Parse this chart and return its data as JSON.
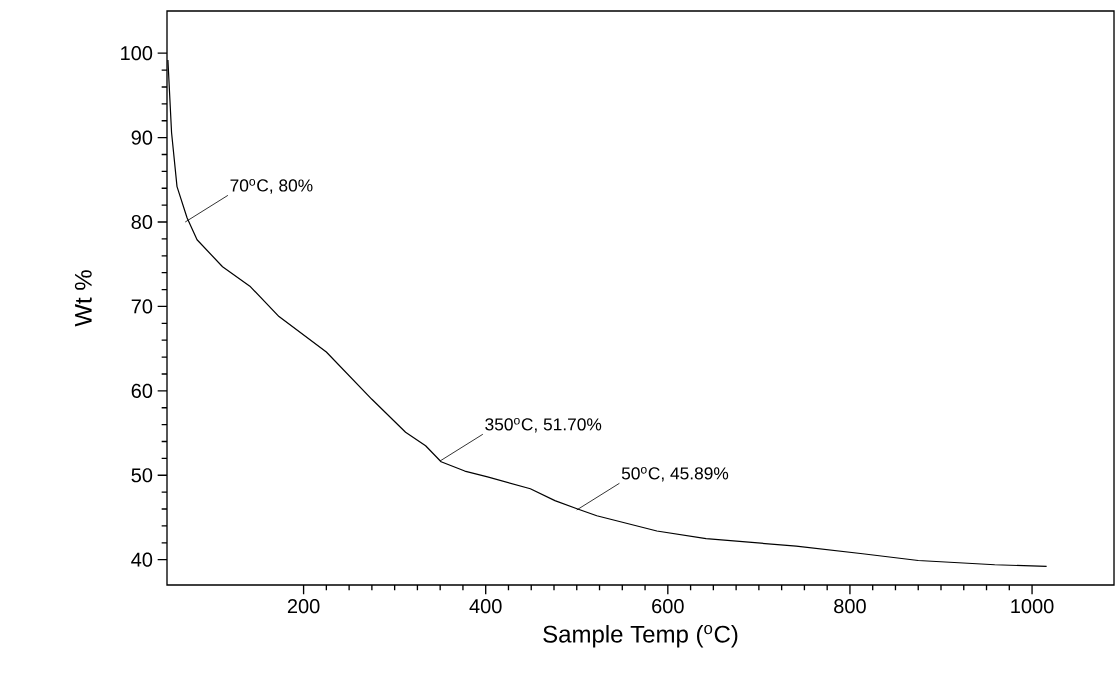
{
  "chart_data": {
    "type": "line",
    "xlabel": "Sample Temp ($^{o}$C)",
    "ylabel": "Wt %",
    "xlim": [
      50,
      1090
    ],
    "ylim": [
      37,
      105
    ],
    "xticks": [
      200,
      400,
      600,
      800,
      1000
    ],
    "yticks": [
      40,
      50,
      60,
      70,
      80,
      90,
      100
    ],
    "series": [
      {
        "color": "#000000",
        "x": [
          51,
          55,
          61,
          72,
          83,
          111,
          141,
          173,
          225,
          275,
          312,
          334,
          351,
          377,
          402,
          449,
          476,
          501,
          522,
          566,
          588,
          642,
          741,
          814,
          875,
          959,
          1016
        ],
        "values": [
          99.2,
          90.6,
          84.2,
          80.5,
          77.9,
          74.7,
          72.4,
          68.8,
          64.6,
          59.0,
          55.1,
          53.5,
          51.6,
          50.5,
          49.8,
          48.4,
          47.0,
          46.0,
          45.2,
          44.0,
          43.4,
          42.5,
          41.6,
          40.7,
          39.9,
          39.4,
          39.2
        ]
      }
    ],
    "annotations": [
      {
        "text": "70$^{o}$C, 80%",
        "x": 70,
        "y": 80
      },
      {
        "text": "350$^{o}$C, 51.70%",
        "x": 350,
        "y": 51.7
      },
      {
        "text": "50$^{o}$C, 45.89%",
        "x": 500,
        "y": 45.89
      }
    ],
    "grid": false,
    "marker": "none",
    "line_style": "solid"
  }
}
